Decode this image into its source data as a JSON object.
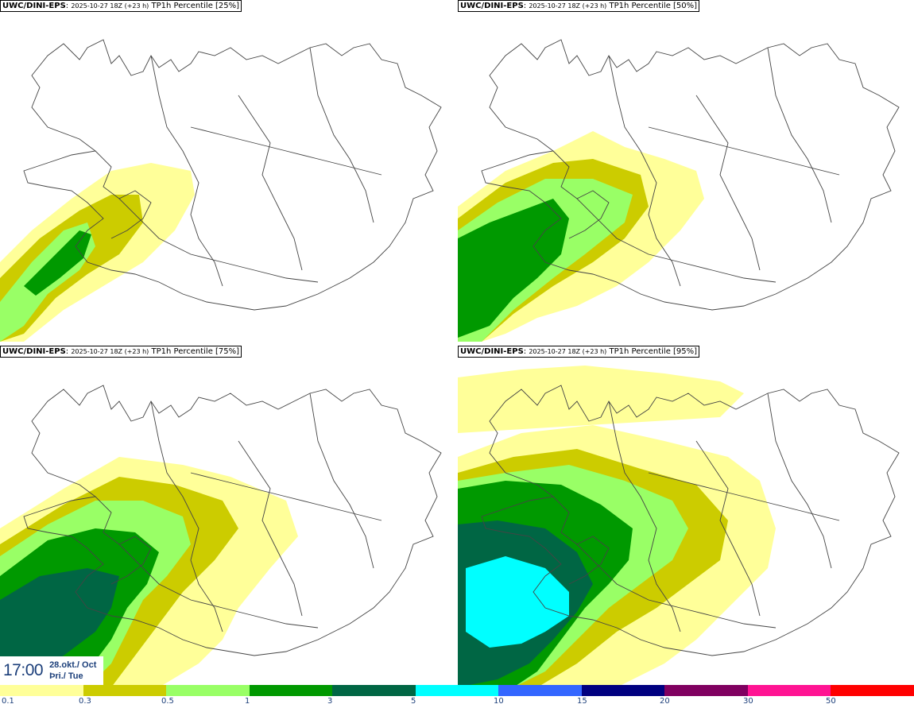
{
  "panels": [
    {
      "model": "UWC/DINI-EPS",
      "run": "2025-10-27 18Z (+23 h)",
      "param": "TP1h Percentile [25%]"
    },
    {
      "model": "UWC/DINI-EPS",
      "run": "2025-10-27 18Z (+23 h)",
      "param": "TP1h Percentile [50%]"
    },
    {
      "model": "UWC/DINI-EPS",
      "run": "2025-10-27 18Z (+23 h)",
      "param": "TP1h Percentile [75%]"
    },
    {
      "model": "UWC/DINI-EPS",
      "run": "2025-10-27 18Z (+23 h)",
      "param": "TP1h Percentile [95%]"
    }
  ],
  "valid_time": {
    "time": "17:00",
    "date": "28.okt./ Oct",
    "weekday": "Þri./ Tue"
  },
  "legend": {
    "labels": [
      "0.1",
      "0.3",
      "0.5",
      "1",
      "3",
      "5",
      "10",
      "15",
      "20",
      "30",
      "50"
    ],
    "colors": [
      "#ffff99",
      "#cccc00",
      "#99ff66",
      "#009900",
      "#006644",
      "#00ffff",
      "#3366ff",
      "#000080",
      "#800060",
      "#ff1493",
      "#ff0000"
    ]
  }
}
